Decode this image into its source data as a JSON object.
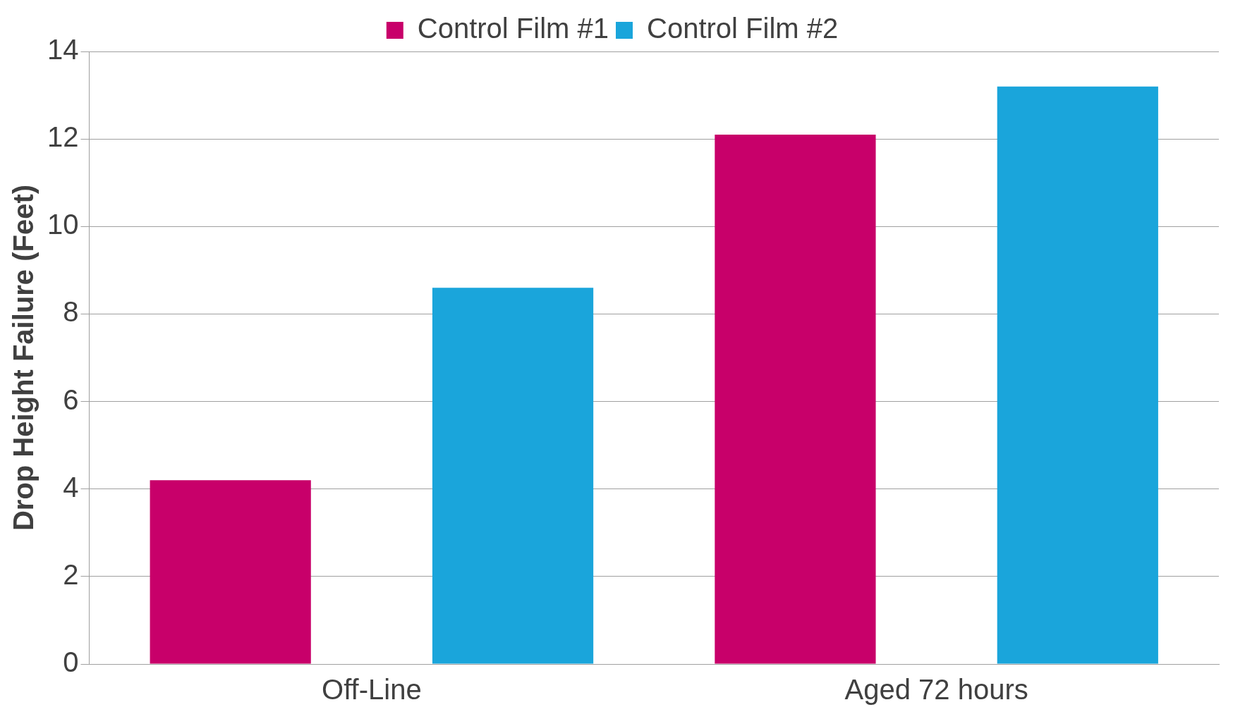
{
  "chart_data": {
    "type": "bar",
    "ylabel": "Drop Height Failure (Feet)",
    "categories": [
      "Off-Line",
      "Aged 72 hours"
    ],
    "series": [
      {
        "name": "Control Film #1",
        "color": "#c8006a",
        "values": [
          4.2,
          12.1
        ]
      },
      {
        "name": "Control Film #2",
        "color": "#1aa5db",
        "values": [
          8.6,
          13.2
        ]
      }
    ],
    "ylim": [
      0,
      14
    ],
    "yticks": [
      0,
      2,
      4,
      6,
      8,
      10,
      12,
      14
    ],
    "grid": "y",
    "legend": "top"
  }
}
